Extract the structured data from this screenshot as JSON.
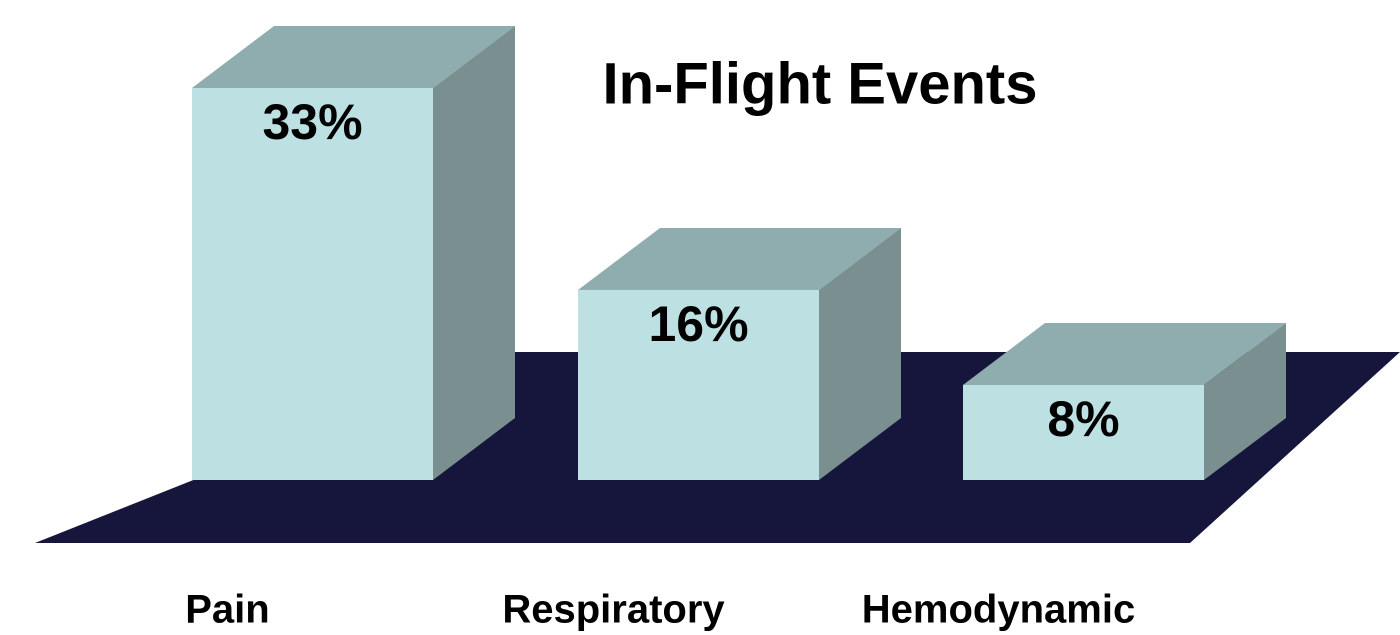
{
  "chart_data": {
    "type": "bar3d",
    "title": "In-Flight Events",
    "categories": [
      "Pain",
      "Respiratory",
      "Hemodynamic"
    ],
    "values": [
      33,
      16,
      8
    ],
    "value_labels": [
      "33%",
      "16%",
      "8%"
    ],
    "color": "#bde1e3",
    "floor_color": "#16163c"
  }
}
